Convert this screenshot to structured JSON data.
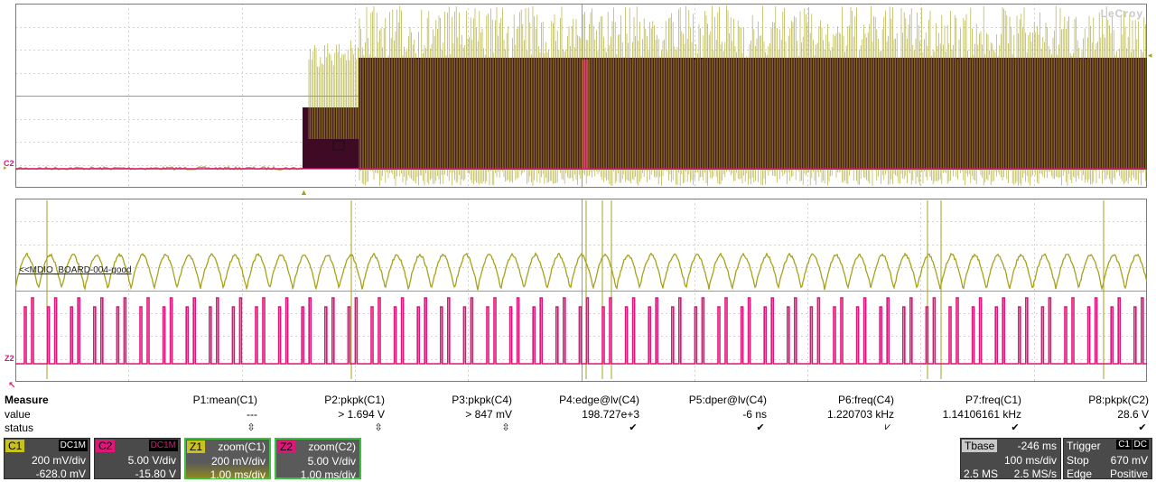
{
  "scope": {
    "brand": "LeCroy",
    "top_marker": "C2",
    "zoom_marker": "Z2",
    "trace_label": "<<MDIO_BOARD-004-good",
    "colors": {
      "c1": "#a7a21c",
      "c2": "#e0157a",
      "c2_fill": "#3f0a24",
      "background": "#ffffff"
    }
  },
  "measure": {
    "title": "Measure",
    "row_value": "value",
    "row_status": "status",
    "params": [
      {
        "name": "P1:mean(C1)",
        "value": "---",
        "status": "⇳"
      },
      {
        "name": "P2:pkpk(C1)",
        "value": "> 1.694 V",
        "status": "⇳"
      },
      {
        "name": "P3:pkpk(C4)",
        "value": "> 847 mV",
        "status": "⇳"
      },
      {
        "name": "P4:edge@lv(C4)",
        "value": "198.727e+3",
        "status": "✔"
      },
      {
        "name": "P5:dper@lv(C4)",
        "value": "-6 ns",
        "status": "✔"
      },
      {
        "name": "P6:freq(C4)",
        "value": "1.220703 kHz",
        "status": "⩗"
      },
      {
        "name": "P7:freq(C1)",
        "value": "1.14106161 kHz",
        "status": "✔"
      },
      {
        "name": "P8:pkpk(C2)",
        "value": "28.6 V",
        "status": "✔"
      }
    ]
  },
  "channels": [
    {
      "tag": "C1",
      "coupling": "DC1M",
      "vdiv": "200 mV/div",
      "offset": "-628.0 mV",
      "color": "#c8c21e"
    },
    {
      "tag": "C2",
      "coupling": "DC1M",
      "vdiv": "5.00 V/div",
      "offset": "-15.80 V",
      "color": "#e0157a"
    }
  ],
  "zooms": [
    {
      "tag": "Z1",
      "label": "zoom(C1)",
      "vdiv": "200 mV/div",
      "tdiv": "1.00 ms/div",
      "color": "#c8c21e"
    },
    {
      "tag": "Z2",
      "label": "zoom(C2)",
      "vdiv": "5.00 V/div",
      "tdiv": "1.00 ms/div",
      "color": "#e0157a"
    }
  ],
  "timebase": {
    "label": "Tbase",
    "delay": "-246 ms",
    "tdiv": "100 ms/div",
    "samples": "2.5 MS",
    "rate": "2.5 MS/s"
  },
  "trigger": {
    "label": "Trigger",
    "src": "C1",
    "cpl": "DC",
    "mode": "Stop",
    "level": "670 mV",
    "type": "Edge",
    "slope": "Positive"
  }
}
